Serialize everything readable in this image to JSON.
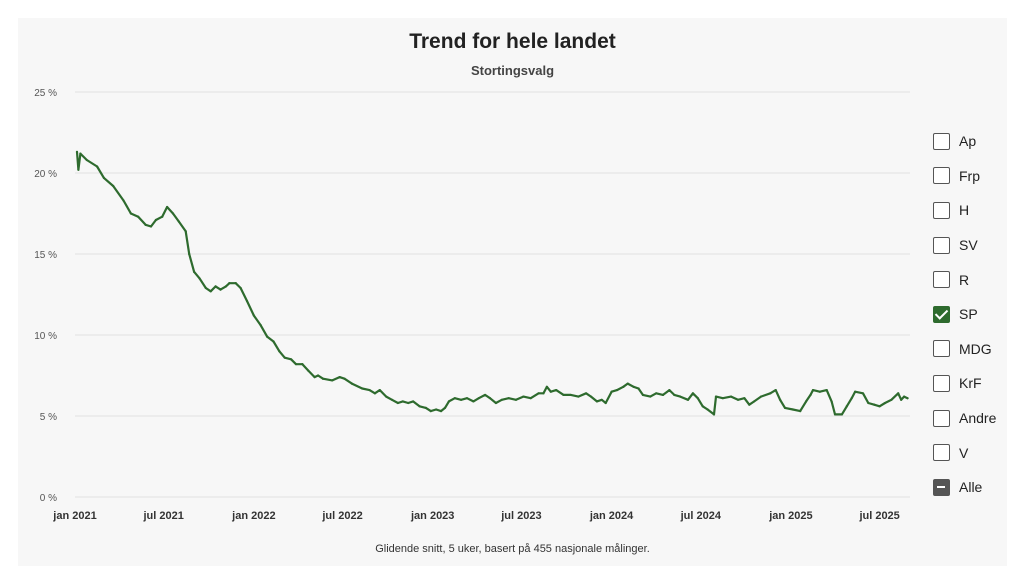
{
  "header": {
    "title": "Trend for hele landet",
    "subtitle": "Stortingsvalg"
  },
  "footnote": "Glidende snitt, 5 uker, basert på 455 nasjonale målinger.",
  "legend": {
    "items": [
      {
        "label": "Ap",
        "state": "unchecked"
      },
      {
        "label": "Frp",
        "state": "unchecked"
      },
      {
        "label": "H",
        "state": "unchecked"
      },
      {
        "label": "SV",
        "state": "unchecked"
      },
      {
        "label": "R",
        "state": "unchecked"
      },
      {
        "label": "SP",
        "state": "checked"
      },
      {
        "label": "MDG",
        "state": "unchecked"
      },
      {
        "label": "KrF",
        "state": "unchecked"
      },
      {
        "label": "Andre",
        "state": "unchecked"
      },
      {
        "label": "V",
        "state": "unchecked"
      },
      {
        "label": "Alle",
        "state": "partial"
      }
    ]
  },
  "colors": {
    "SP": "#2e6b2e",
    "grid": "#e2e2e2",
    "background": "#f7f7f7"
  },
  "chart_data": {
    "type": "line",
    "title": "Trend for hele landet",
    "subtitle": "Stortingsvalg",
    "ylim": [
      0,
      25
    ],
    "y_ticks": [
      0,
      5,
      10,
      15,
      20,
      25
    ],
    "y_tick_labels": [
      "0 %",
      "5 %",
      "10 %",
      "15 %",
      "20 %",
      "25 %"
    ],
    "x_range": [
      "2021-01-01",
      "2025-09-01"
    ],
    "x_ticks": [
      "2021-01-01",
      "2021-07-01",
      "2022-01-01",
      "2022-07-01",
      "2023-01-01",
      "2023-07-01",
      "2024-01-01",
      "2024-07-01",
      "2025-01-01",
      "2025-07-01"
    ],
    "x_tick_labels": [
      "jan 2021",
      "jul 2021",
      "jan 2022",
      "jul 2022",
      "jan 2023",
      "jul 2023",
      "jan 2024",
      "jul 2024",
      "jan 2025",
      "jul 2025"
    ],
    "grid": true,
    "legend_position": "right",
    "series": [
      {
        "name": "SP",
        "color": "#2e6b2e",
        "points": [
          [
            "2021-01-05",
            21.3
          ],
          [
            "2021-01-08",
            20.2
          ],
          [
            "2021-01-12",
            21.2
          ],
          [
            "2021-01-25",
            20.8
          ],
          [
            "2021-02-15",
            20.4
          ],
          [
            "2021-03-01",
            19.7
          ],
          [
            "2021-03-20",
            19.2
          ],
          [
            "2021-04-10",
            18.3
          ],
          [
            "2021-04-25",
            17.5
          ],
          [
            "2021-05-10",
            17.3
          ],
          [
            "2021-05-25",
            16.8
          ],
          [
            "2021-06-05",
            16.7
          ],
          [
            "2021-06-15",
            17.1
          ],
          [
            "2021-06-28",
            17.3
          ],
          [
            "2021-07-08",
            17.9
          ],
          [
            "2021-07-20",
            17.5
          ],
          [
            "2021-08-01",
            17.0
          ],
          [
            "2021-08-15",
            16.4
          ],
          [
            "2021-08-22",
            15.0
          ],
          [
            "2021-09-01",
            13.9
          ],
          [
            "2021-09-12",
            13.5
          ],
          [
            "2021-09-25",
            12.9
          ],
          [
            "2021-10-05",
            12.7
          ],
          [
            "2021-10-15",
            13.0
          ],
          [
            "2021-10-25",
            12.8
          ],
          [
            "2021-11-05",
            13.0
          ],
          [
            "2021-11-12",
            13.2
          ],
          [
            "2021-11-25",
            13.2
          ],
          [
            "2021-12-05",
            12.9
          ],
          [
            "2021-12-18",
            12.1
          ],
          [
            "2022-01-01",
            11.2
          ],
          [
            "2022-01-15",
            10.6
          ],
          [
            "2022-01-28",
            9.9
          ],
          [
            "2022-02-10",
            9.6
          ],
          [
            "2022-02-22",
            9.0
          ],
          [
            "2022-03-05",
            8.6
          ],
          [
            "2022-03-18",
            8.5
          ],
          [
            "2022-03-28",
            8.2
          ],
          [
            "2022-04-10",
            8.2
          ],
          [
            "2022-04-22",
            7.8
          ],
          [
            "2022-05-05",
            7.4
          ],
          [
            "2022-05-12",
            7.5
          ],
          [
            "2022-05-22",
            7.3
          ],
          [
            "2022-06-10",
            7.2
          ],
          [
            "2022-06-25",
            7.4
          ],
          [
            "2022-07-05",
            7.3
          ],
          [
            "2022-07-20",
            7.0
          ],
          [
            "2022-08-10",
            6.7
          ],
          [
            "2022-08-25",
            6.6
          ],
          [
            "2022-09-05",
            6.4
          ],
          [
            "2022-09-15",
            6.6
          ],
          [
            "2022-09-28",
            6.2
          ],
          [
            "2022-10-10",
            6.0
          ],
          [
            "2022-10-22",
            5.8
          ],
          [
            "2022-11-01",
            5.9
          ],
          [
            "2022-11-12",
            5.8
          ],
          [
            "2022-11-22",
            5.9
          ],
          [
            "2022-12-05",
            5.6
          ],
          [
            "2022-12-18",
            5.5
          ],
          [
            "2022-12-28",
            5.3
          ],
          [
            "2023-01-08",
            5.4
          ],
          [
            "2023-01-18",
            5.3
          ],
          [
            "2023-01-26",
            5.5
          ],
          [
            "2023-02-03",
            5.9
          ],
          [
            "2023-02-15",
            6.1
          ],
          [
            "2023-02-28",
            6.0
          ],
          [
            "2023-03-12",
            6.1
          ],
          [
            "2023-03-25",
            5.9
          ],
          [
            "2023-04-05",
            6.1
          ],
          [
            "2023-04-18",
            6.3
          ],
          [
            "2023-04-28",
            6.1
          ],
          [
            "2023-05-10",
            5.8
          ],
          [
            "2023-05-22",
            6.0
          ],
          [
            "2023-06-05",
            6.1
          ],
          [
            "2023-06-20",
            6.0
          ],
          [
            "2023-07-05",
            6.2
          ],
          [
            "2023-07-20",
            6.1
          ],
          [
            "2023-08-05",
            6.4
          ],
          [
            "2023-08-15",
            6.4
          ],
          [
            "2023-08-22",
            6.8
          ],
          [
            "2023-08-30",
            6.5
          ],
          [
            "2023-09-10",
            6.6
          ],
          [
            "2023-09-25",
            6.3
          ],
          [
            "2023-10-10",
            6.3
          ],
          [
            "2023-10-25",
            6.2
          ],
          [
            "2023-11-10",
            6.4
          ],
          [
            "2023-11-20",
            6.2
          ],
          [
            "2023-12-02",
            5.9
          ],
          [
            "2023-12-12",
            6.0
          ],
          [
            "2023-12-20",
            5.8
          ],
          [
            "2024-01-01",
            6.5
          ],
          [
            "2024-01-12",
            6.6
          ],
          [
            "2024-01-25",
            6.8
          ],
          [
            "2024-02-03",
            7.0
          ],
          [
            "2024-02-15",
            6.8
          ],
          [
            "2024-02-25",
            6.7
          ],
          [
            "2024-03-05",
            6.3
          ],
          [
            "2024-03-20",
            6.2
          ],
          [
            "2024-04-01",
            6.4
          ],
          [
            "2024-04-15",
            6.3
          ],
          [
            "2024-04-28",
            6.6
          ],
          [
            "2024-05-08",
            6.3
          ],
          [
            "2024-05-20",
            6.2
          ],
          [
            "2024-06-05",
            6.0
          ],
          [
            "2024-06-15",
            6.4
          ],
          [
            "2024-06-25",
            6.1
          ],
          [
            "2024-07-05",
            5.6
          ],
          [
            "2024-07-15",
            5.4
          ],
          [
            "2024-07-28",
            5.1
          ],
          [
            "2024-08-01",
            6.2
          ],
          [
            "2024-08-15",
            6.1
          ],
          [
            "2024-09-01",
            6.2
          ],
          [
            "2024-09-15",
            6.0
          ],
          [
            "2024-09-28",
            6.1
          ],
          [
            "2024-10-08",
            5.7
          ],
          [
            "2024-10-18",
            5.9
          ],
          [
            "2024-11-01",
            6.2
          ],
          [
            "2024-11-20",
            6.4
          ],
          [
            "2024-12-01",
            6.6
          ],
          [
            "2024-12-10",
            6.0
          ],
          [
            "2024-12-20",
            5.5
          ],
          [
            "2025-01-05",
            5.4
          ],
          [
            "2025-01-20",
            5.3
          ],
          [
            "2025-02-01",
            5.9
          ],
          [
            "2025-02-10",
            6.3
          ],
          [
            "2025-02-15",
            6.6
          ],
          [
            "2025-03-01",
            6.5
          ],
          [
            "2025-03-15",
            6.6
          ],
          [
            "2025-03-25",
            5.9
          ],
          [
            "2025-04-01",
            5.1
          ],
          [
            "2025-04-15",
            5.1
          ],
          [
            "2025-04-25",
            5.6
          ],
          [
            "2025-05-05",
            6.1
          ],
          [
            "2025-05-12",
            6.5
          ],
          [
            "2025-05-28",
            6.4
          ],
          [
            "2025-06-08",
            5.8
          ],
          [
            "2025-06-20",
            5.7
          ],
          [
            "2025-07-01",
            5.6
          ],
          [
            "2025-07-12",
            5.8
          ],
          [
            "2025-07-25",
            6.0
          ],
          [
            "2025-08-08",
            6.4
          ],
          [
            "2025-08-14",
            6.0
          ],
          [
            "2025-08-20",
            6.2
          ],
          [
            "2025-08-27",
            6.1
          ]
        ]
      }
    ]
  }
}
